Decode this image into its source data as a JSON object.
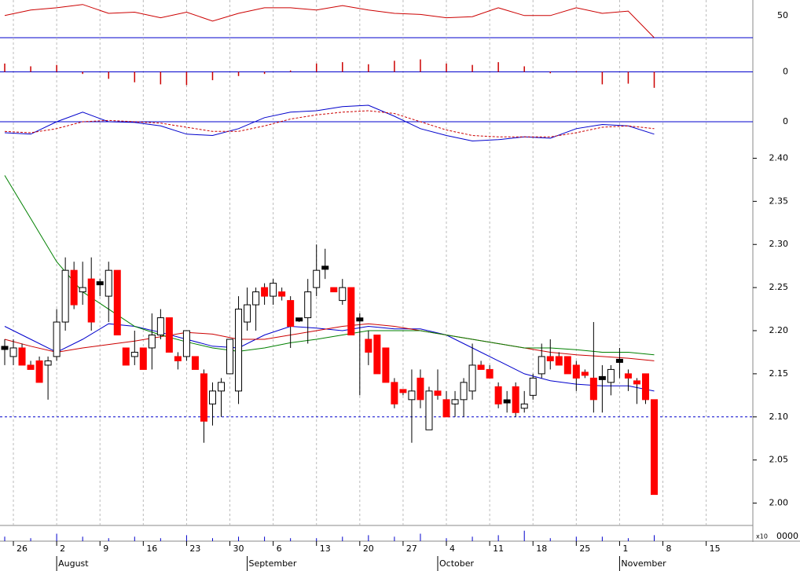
{
  "chart_data": {
    "type": "candlestick",
    "yticks": [
      {
        "value": 2.4,
        "label": "2.40"
      },
      {
        "value": 2.35,
        "label": "2.35"
      },
      {
        "value": 2.3,
        "label": "2.30"
      },
      {
        "value": 2.25,
        "label": "2.25"
      },
      {
        "value": 2.2,
        "label": "2.20"
      },
      {
        "value": 2.15,
        "label": "2.15"
      },
      {
        "value": 2.1,
        "label": "2.10"
      },
      {
        "value": 2.05,
        "label": "2.05"
      },
      {
        "value": 2.0,
        "label": "2.00"
      }
    ],
    "ylim": [
      1.975,
      2.415
    ],
    "up_color": "#ffffff",
    "down_color": "#ff0000",
    "flat_color": "#000000",
    "candles": [
      [
        2.18,
        2.19,
        2.16,
        2.18
      ],
      [
        2.17,
        2.19,
        2.16,
        2.18
      ],
      [
        2.18,
        2.185,
        2.16,
        2.16
      ],
      [
        2.16,
        2.165,
        2.155,
        2.155
      ],
      [
        2.165,
        2.17,
        2.14,
        2.14
      ],
      [
        2.16,
        2.17,
        2.12,
        2.165
      ],
      [
        2.17,
        2.225,
        2.165,
        2.21
      ],
      [
        2.21,
        2.285,
        2.2,
        2.27
      ],
      [
        2.27,
        2.28,
        2.225,
        2.23
      ],
      [
        2.245,
        2.28,
        2.23,
        2.25
      ],
      [
        2.26,
        2.285,
        2.2,
        2.21
      ],
      [
        2.255,
        2.26,
        2.24,
        2.255
      ],
      [
        2.24,
        2.28,
        2.21,
        2.27
      ],
      [
        2.27,
        2.27,
        2.195,
        2.195
      ],
      [
        2.18,
        2.18,
        2.16,
        2.16
      ],
      [
        2.17,
        2.2,
        2.16,
        2.175
      ],
      [
        2.18,
        2.18,
        2.155,
        2.155
      ],
      [
        2.18,
        2.22,
        2.155,
        2.195
      ],
      [
        2.195,
        2.225,
        2.19,
        2.215
      ],
      [
        2.215,
        2.215,
        2.175,
        2.175
      ],
      [
        2.17,
        2.175,
        2.155,
        2.165
      ],
      [
        2.17,
        2.2,
        2.165,
        2.2
      ],
      [
        2.17,
        2.17,
        2.155,
        2.155
      ],
      [
        2.15,
        2.155,
        2.07,
        2.095
      ],
      [
        2.115,
        2.14,
        2.09,
        2.13
      ],
      [
        2.13,
        2.145,
        2.1,
        2.14
      ],
      [
        2.15,
        2.19,
        2.15,
        2.19
      ],
      [
        2.13,
        2.24,
        2.115,
        2.225
      ],
      [
        2.21,
        2.25,
        2.2,
        2.23
      ],
      [
        2.23,
        2.25,
        2.2,
        2.245
      ],
      [
        2.25,
        2.255,
        2.23,
        2.24
      ],
      [
        2.24,
        2.26,
        2.23,
        2.255
      ],
      [
        2.245,
        2.25,
        2.235,
        2.24
      ],
      [
        2.235,
        2.24,
        2.18,
        2.205
      ],
      [
        2.213,
        2.215,
        2.21,
        2.213
      ],
      [
        2.215,
        2.26,
        2.185,
        2.245
      ],
      [
        2.25,
        2.3,
        2.24,
        2.27
      ],
      [
        2.273,
        2.295,
        2.26,
        2.273
      ],
      [
        2.25,
        2.25,
        2.245,
        2.245
      ],
      [
        2.235,
        2.26,
        2.23,
        2.25
      ],
      [
        2.25,
        2.25,
        2.195,
        2.195
      ],
      [
        2.213,
        2.22,
        2.125,
        2.213
      ],
      [
        2.19,
        2.2,
        2.16,
        2.175
      ],
      [
        2.195,
        2.195,
        2.15,
        2.15
      ],
      [
        2.18,
        2.18,
        2.14,
        2.14
      ],
      [
        2.14,
        2.145,
        2.11,
        2.115
      ],
      [
        2.13,
        2.13,
        2.125,
        2.128
      ],
      [
        2.12,
        2.155,
        2.07,
        2.13
      ],
      [
        2.145,
        2.155,
        2.11,
        2.12
      ],
      [
        2.085,
        2.135,
        2.085,
        2.13
      ],
      [
        2.13,
        2.155,
        2.12,
        2.125
      ],
      [
        2.12,
        2.13,
        2.1,
        2.1
      ],
      [
        2.115,
        2.13,
        2.1,
        2.12
      ],
      [
        2.12,
        2.145,
        2.1,
        2.14
      ],
      [
        2.13,
        2.185,
        2.12,
        2.16
      ],
      [
        2.16,
        2.165,
        2.155,
        2.155
      ],
      [
        2.155,
        2.16,
        2.145,
        2.145
      ],
      [
        2.135,
        2.14,
        2.11,
        2.115
      ],
      [
        2.118,
        2.13,
        2.105,
        2.118
      ],
      [
        2.135,
        2.14,
        2.1,
        2.105
      ],
      [
        2.11,
        2.13,
        2.105,
        2.115
      ],
      [
        2.125,
        2.15,
        2.12,
        2.145
      ],
      [
        2.15,
        2.185,
        2.145,
        2.17
      ],
      [
        2.17,
        2.19,
        2.155,
        2.165
      ],
      [
        2.17,
        2.175,
        2.16,
        2.16
      ],
      [
        2.17,
        2.17,
        2.15,
        2.15
      ],
      [
        2.16,
        2.165,
        2.13,
        2.145
      ],
      [
        2.15,
        2.155,
        2.145,
        2.148
      ],
      [
        2.145,
        2.21,
        2.105,
        2.12
      ],
      [
        2.145,
        2.16,
        2.105,
        2.145
      ],
      [
        2.14,
        2.16,
        2.125,
        2.155
      ],
      [
        2.165,
        2.18,
        2.145,
        2.165
      ],
      [
        2.15,
        2.155,
        2.13,
        2.145
      ],
      [
        2.14,
        2.145,
        2.115,
        2.138
      ],
      [
        2.15,
        2.15,
        2.115,
        2.12
      ],
      [
        2.12,
        2.12,
        2.01,
        2.01
      ]
    ],
    "averages": [
      {
        "color": "#0000cc",
        "values": [
          2.205,
          2.19,
          2.175,
          2.19,
          2.208,
          2.205,
          2.198,
          2.19,
          2.182,
          2.18,
          2.195,
          2.205,
          2.203,
          2.2,
          2.205,
          2.202,
          2.202,
          2.195,
          2.18,
          2.165,
          2.15,
          2.142,
          2.138,
          2.136,
          2.136,
          2.13
        ]
      },
      {
        "color": "#cc0000",
        "values": [
          2.19,
          2.182,
          2.175,
          2.18,
          2.184,
          2.188,
          2.193,
          2.198,
          2.196,
          2.19,
          2.19,
          2.195,
          2.2,
          2.205,
          2.208,
          2.205,
          2.2,
          2.195,
          2.19,
          2.185,
          2.18,
          2.175,
          2.172,
          2.17,
          2.168,
          2.165
        ]
      },
      {
        "color": "#008000",
        "values": [
          2.38,
          2.33,
          2.28,
          2.245,
          2.225,
          2.205,
          2.195,
          2.187,
          2.18,
          2.176,
          2.18,
          2.186,
          2.19,
          2.195,
          2.2,
          2.2,
          2.2,
          2.195,
          2.19,
          2.185,
          2.18,
          2.18,
          2.178,
          2.175,
          2.175,
          2.172
        ]
      }
    ],
    "reference_price": 2.1,
    "oscillator": {
      "color": "#cc0000",
      "ylim": [
        18,
        64
      ],
      "yticks": [
        50
      ],
      "values": [
        50,
        55,
        57,
        60,
        52,
        53,
        48,
        53,
        45,
        52,
        57,
        57,
        55,
        59,
        55,
        52,
        51,
        48,
        49,
        57,
        50,
        50,
        57,
        52,
        54,
        30
      ]
    },
    "histogram": {
      "color": "#cc0000",
      "ylim": [
        -3,
        3
      ],
      "yticks": [
        0
      ],
      "values": [
        1.2,
        0.8,
        1.0,
        -0.3,
        -1.0,
        -1.5,
        -1.8,
        -1.9,
        -1.2,
        -0.6,
        -0.3,
        0.2,
        1.2,
        1.4,
        1.1,
        1.6,
        1.8,
        1.2,
        1.0,
        1.4,
        0.8,
        -0.2,
        0.1,
        -1.8,
        -1.7,
        -2.3
      ]
    },
    "macd": {
      "ylim": [
        -2,
        2
      ],
      "yticks": [
        0
      ],
      "series": [
        {
          "color": "#0000cc",
          "values": [
            -0.8,
            -0.9,
            0.0,
            0.7,
            0.0,
            -0.05,
            -0.3,
            -0.9,
            -1.0,
            -0.5,
            0.3,
            0.7,
            0.8,
            1.1,
            1.2,
            0.4,
            -0.5,
            -1.0,
            -1.4,
            -1.3,
            -1.1,
            -1.2,
            -0.5,
            -0.2,
            -0.3,
            -0.9
          ]
        },
        {
          "color": "#cc0000",
          "values": [
            -0.7,
            -0.8,
            -0.5,
            0.0,
            0.1,
            0.0,
            -0.1,
            -0.4,
            -0.7,
            -0.7,
            -0.3,
            0.2,
            0.5,
            0.7,
            0.8,
            0.6,
            0.0,
            -0.6,
            -1.0,
            -1.1,
            -1.1,
            -1.1,
            -0.8,
            -0.4,
            -0.3,
            -0.5
          ]
        }
      ]
    },
    "volume": {
      "color": "#0000cc",
      "ylim": [
        0,
        10
      ],
      "scale_label": "x10",
      "tick_label": "0000",
      "values": [
        3,
        2,
        5,
        3,
        2,
        3,
        2,
        4,
        2,
        3,
        3,
        2,
        2,
        3,
        4,
        3,
        5,
        2,
        3,
        4,
        7,
        2,
        3,
        3,
        2,
        4
      ]
    },
    "day_labels": [
      "26",
      "2",
      "9",
      "16",
      "23",
      "30",
      "6",
      "13",
      "20",
      "27",
      "4",
      "11",
      "18",
      "25",
      "1",
      "8",
      "15"
    ],
    "month_labels": [
      "August",
      "September",
      "October",
      "November"
    ]
  }
}
